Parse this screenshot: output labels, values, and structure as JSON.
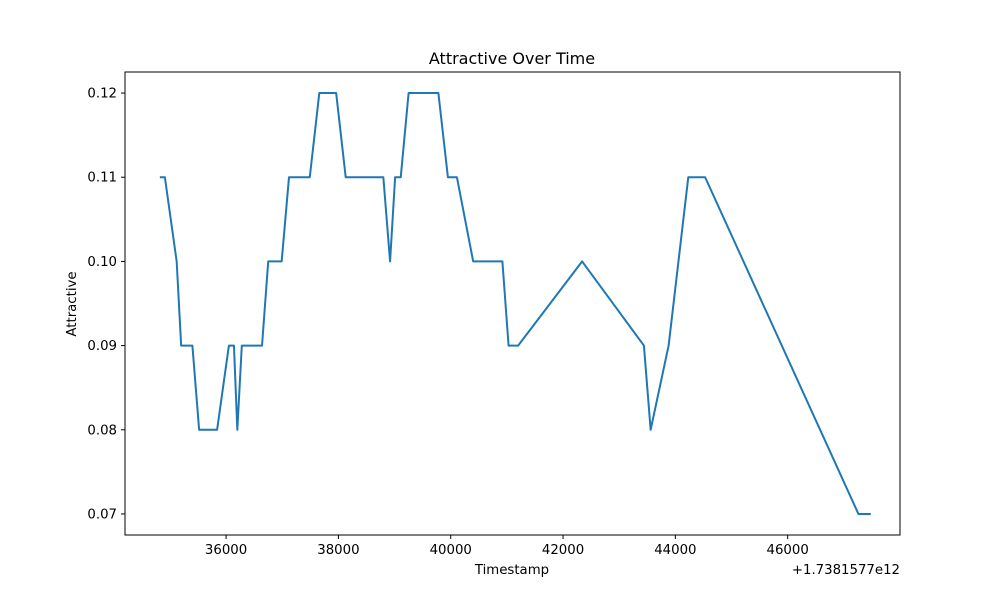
{
  "chart_data": {
    "type": "line",
    "title": "Attractive Over Time",
    "xlabel": "Timestamp",
    "ylabel": "Attractive",
    "x_offset_label": "+1.7381577e12",
    "xlim": [
      34200,
      48000
    ],
    "ylim": [
      0.0675,
      0.1225
    ],
    "x_ticks": [
      36000,
      38000,
      40000,
      42000,
      44000,
      46000
    ],
    "x_tick_labels": [
      "36000",
      "38000",
      "40000",
      "42000",
      "44000",
      "46000"
    ],
    "y_ticks": [
      0.07,
      0.08,
      0.09,
      0.1,
      0.11,
      0.12
    ],
    "y_tick_labels": [
      "0.07",
      "0.08",
      "0.09",
      "0.10",
      "0.11",
      "0.12"
    ],
    "grid": false,
    "series": [
      {
        "name": "Attractive",
        "color": "#1f77b4",
        "x": [
          34820,
          34910,
          35120,
          35200,
          35400,
          35520,
          35840,
          36050,
          36140,
          36200,
          36280,
          36360,
          36640,
          36750,
          36990,
          37120,
          37490,
          37660,
          37960,
          38130,
          38800,
          38920,
          39010,
          39110,
          39250,
          39780,
          39950,
          40110,
          40400,
          40920,
          41030,
          41200,
          42340,
          43440,
          43560,
          43880,
          44230,
          44530,
          47260,
          47480
        ],
        "y": [
          0.11,
          0.11,
          0.1,
          0.09,
          0.09,
          0.08,
          0.08,
          0.09,
          0.09,
          0.08,
          0.09,
          0.09,
          0.09,
          0.1,
          0.1,
          0.11,
          0.11,
          0.12,
          0.12,
          0.11,
          0.11,
          0.1,
          0.11,
          0.11,
          0.12,
          0.12,
          0.11,
          0.11,
          0.1,
          0.1,
          0.09,
          0.09,
          0.1,
          0.09,
          0.08,
          0.09,
          0.11,
          0.11,
          0.07,
          0.07
        ]
      }
    ]
  }
}
